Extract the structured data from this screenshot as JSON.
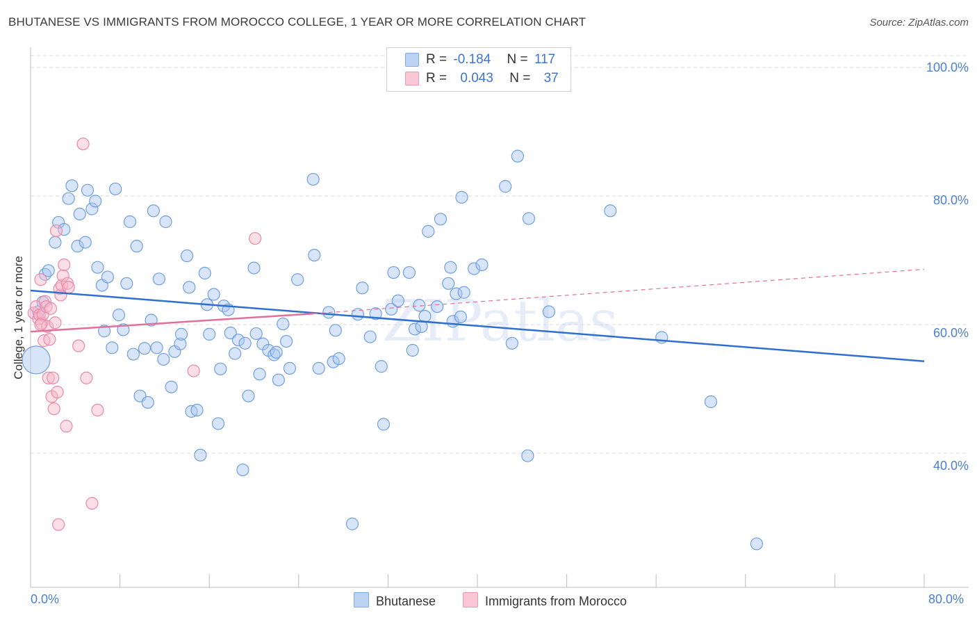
{
  "header": {
    "title": "BHUTANESE VS IMMIGRANTS FROM MOROCCO COLLEGE, 1 YEAR OR MORE CORRELATION CHART",
    "source": "Source: ZipAtlas.com"
  },
  "legend": {
    "rows": [
      {
        "r_label": "R =",
        "r_value": "-0.184",
        "n_label": "N =",
        "n_value": "117"
      },
      {
        "r_label": "R =",
        "r_value": "0.043",
        "n_label": "N =",
        "n_value": "37"
      }
    ]
  },
  "watermark": "ZIPatlas",
  "colors": {
    "blue_fill": "#a9c6ef",
    "blue_stroke": "#6f9fe0",
    "blue_line": "#2f6fcf",
    "pink_fill": "#f6b5c8",
    "pink_stroke": "#e889a8",
    "pink_line": "#e0709a",
    "tick_label": "#4a7fd4",
    "grid": "#d8d8d8"
  },
  "chart_data": {
    "type": "scatter",
    "title": "BHUTANESE VS IMMIGRANTS FROM MOROCCO COLLEGE, 1 YEAR OR MORE CORRELATION CHART",
    "xlabel": "",
    "ylabel": "College, 1 year or more",
    "xlim": [
      0,
      80
    ],
    "ylim": [
      20,
      100
    ],
    "x_tick_labels": [
      "0.0%",
      "80.0%"
    ],
    "y_ticks": [
      40,
      60,
      80,
      100
    ],
    "y_tick_labels": [
      "40.0%",
      "60.0%",
      "80.0%",
      "100.0%"
    ],
    "grid": true,
    "legend_position": "top-center",
    "series": [
      {
        "name": "Bhutanese",
        "r": -0.184,
        "n": 117,
        "trend": {
          "x": [
            0,
            80
          ],
          "y": [
            65.3,
            54.3
          ],
          "style": "solid"
        },
        "points": [
          [
            0.5,
            54.5
          ],
          [
            0.7,
            62.0
          ],
          [
            1.1,
            63.5
          ],
          [
            1.3,
            67.8
          ],
          [
            1.6,
            68.4
          ],
          [
            2.2,
            72.8
          ],
          [
            2.5,
            75.9
          ],
          [
            3.0,
            74.8
          ],
          [
            3.4,
            79.6
          ],
          [
            3.7,
            81.6
          ],
          [
            4.2,
            72.2
          ],
          [
            4.4,
            77.2
          ],
          [
            4.9,
            72.8
          ],
          [
            5.1,
            80.9
          ],
          [
            5.5,
            78.0
          ],
          [
            5.8,
            79.2
          ],
          [
            6.0,
            68.9
          ],
          [
            6.4,
            66.1
          ],
          [
            6.6,
            59.0
          ],
          [
            6.9,
            67.4
          ],
          [
            7.3,
            56.4
          ],
          [
            7.6,
            81.1
          ],
          [
            7.9,
            61.5
          ],
          [
            8.3,
            59.2
          ],
          [
            8.6,
            66.4
          ],
          [
            8.9,
            76.0
          ],
          [
            9.2,
            55.4
          ],
          [
            9.5,
            72.2
          ],
          [
            9.8,
            48.9
          ],
          [
            10.2,
            56.3
          ],
          [
            10.5,
            47.9
          ],
          [
            10.8,
            60.7
          ],
          [
            11.0,
            77.7
          ],
          [
            11.3,
            56.4
          ],
          [
            11.5,
            67.1
          ],
          [
            11.9,
            54.6
          ],
          [
            12.1,
            76.0
          ],
          [
            12.6,
            50.3
          ],
          [
            12.9,
            55.8
          ],
          [
            13.4,
            57.0
          ],
          [
            13.5,
            58.5
          ],
          [
            14.0,
            70.7
          ],
          [
            14.2,
            65.8
          ],
          [
            14.4,
            46.5
          ],
          [
            14.9,
            46.7
          ],
          [
            15.2,
            39.7
          ],
          [
            15.6,
            68.0
          ],
          [
            15.8,
            63.1
          ],
          [
            16.0,
            58.5
          ],
          [
            16.4,
            64.7
          ],
          [
            16.8,
            44.6
          ],
          [
            17.0,
            53.1
          ],
          [
            17.3,
            62.9
          ],
          [
            17.7,
            62.3
          ],
          [
            17.9,
            58.7
          ],
          [
            18.3,
            55.5
          ],
          [
            18.6,
            57.6
          ],
          [
            19.0,
            37.4
          ],
          [
            19.2,
            57.1
          ],
          [
            19.5,
            48.9
          ],
          [
            20.0,
            68.8
          ],
          [
            20.2,
            58.6
          ],
          [
            20.5,
            52.3
          ],
          [
            20.8,
            57.0
          ],
          [
            21.3,
            56.0
          ],
          [
            21.8,
            55.3
          ],
          [
            22.2,
            51.4
          ],
          [
            22.0,
            55.7
          ],
          [
            22.6,
            60.1
          ],
          [
            22.9,
            57.4
          ],
          [
            23.2,
            53.2
          ],
          [
            23.9,
            67.0
          ],
          [
            25.3,
            82.6
          ],
          [
            25.4,
            70.8
          ],
          [
            25.8,
            53.2
          ],
          [
            26.7,
            61.9
          ],
          [
            27.1,
            54.2
          ],
          [
            27.3,
            59.1
          ],
          [
            27.6,
            54.7
          ],
          [
            28.8,
            29.0
          ],
          [
            29.3,
            61.6
          ],
          [
            29.7,
            65.7
          ],
          [
            30.4,
            58.1
          ],
          [
            30.9,
            61.7
          ],
          [
            31.4,
            53.5
          ],
          [
            31.6,
            44.5
          ],
          [
            32.3,
            62.4
          ],
          [
            32.5,
            68.1
          ],
          [
            32.9,
            63.7
          ],
          [
            33.9,
            68.1
          ],
          [
            34.2,
            56.0
          ],
          [
            34.4,
            59.3
          ],
          [
            34.8,
            63.0
          ],
          [
            35.0,
            59.7
          ],
          [
            35.3,
            61.3
          ],
          [
            35.6,
            74.5
          ],
          [
            36.4,
            62.8
          ],
          [
            36.7,
            76.4
          ],
          [
            37.4,
            66.4
          ],
          [
            37.6,
            68.9
          ],
          [
            37.8,
            60.5
          ],
          [
            38.1,
            64.8
          ],
          [
            38.5,
            61.2
          ],
          [
            38.6,
            79.8
          ],
          [
            38.8,
            65.0
          ],
          [
            39.7,
            68.7
          ],
          [
            40.4,
            69.3
          ],
          [
            42.5,
            81.5
          ],
          [
            43.1,
            57.1
          ],
          [
            43.6,
            86.2
          ],
          [
            44.5,
            39.6
          ],
          [
            44.6,
            76.5
          ],
          [
            46.4,
            62.0
          ],
          [
            51.9,
            77.7
          ],
          [
            56.5,
            58.0
          ],
          [
            60.9,
            48.0
          ],
          [
            65.0,
            25.9
          ]
        ]
      },
      {
        "name": "Immigrants from Morocco",
        "r": 0.043,
        "n": 37,
        "trend": {
          "x": [
            0,
            25.3
          ],
          "y": [
            58.9,
            61.7
          ],
          "dashed_to": [
            80,
            68.6
          ],
          "style": "solid+dashed"
        },
        "points": [
          [
            0.3,
            61.8
          ],
          [
            0.5,
            62.8
          ],
          [
            0.7,
            60.9
          ],
          [
            0.8,
            61.5
          ],
          [
            0.9,
            67.0
          ],
          [
            1.0,
            60.2
          ],
          [
            1.1,
            61.6
          ],
          [
            1.2,
            57.5
          ],
          [
            1.3,
            63.6
          ],
          [
            1.4,
            62.8
          ],
          [
            1.5,
            59.7
          ],
          [
            1.6,
            51.7
          ],
          [
            1.7,
            57.7
          ],
          [
            1.8,
            62.5
          ],
          [
            1.9,
            48.8
          ],
          [
            2.0,
            51.7
          ],
          [
            2.1,
            46.9
          ],
          [
            2.2,
            60.3
          ],
          [
            2.3,
            74.6
          ],
          [
            2.4,
            49.5
          ],
          [
            2.5,
            28.9
          ],
          [
            2.6,
            65.6
          ],
          [
            2.7,
            64.6
          ],
          [
            2.8,
            66.1
          ],
          [
            2.9,
            67.6
          ],
          [
            3.0,
            69.3
          ],
          [
            3.2,
            44.2
          ],
          [
            3.3,
            66.4
          ],
          [
            3.4,
            65.8
          ],
          [
            4.3,
            56.7
          ],
          [
            4.7,
            88.1
          ],
          [
            5.0,
            51.7
          ],
          [
            5.5,
            32.2
          ],
          [
            6.0,
            46.7
          ],
          [
            14.6,
            52.8
          ],
          [
            20.1,
            73.4
          ],
          [
            0.9,
            60.0
          ]
        ]
      }
    ]
  },
  "bottom_legend": {
    "items": [
      {
        "label": "Bhutanese"
      },
      {
        "label": "Immigrants from Morocco"
      }
    ]
  }
}
